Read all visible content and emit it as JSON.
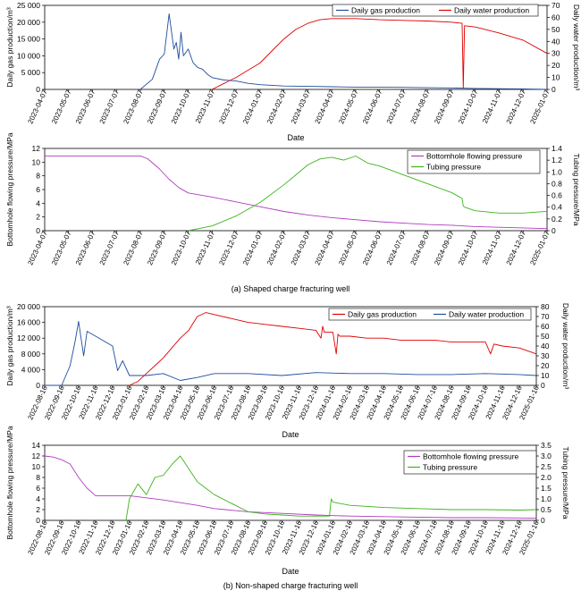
{
  "figure": {
    "caption_a": "(a) Shaped charge fracturing well",
    "caption_b": "(b) Non-shaped charge fracturing well",
    "colors": {
      "gas": "#e00000",
      "water": "#1f4e9c",
      "bhp": "#b03cc0",
      "tubing": "#3cb41c"
    }
  },
  "chart_data": [
    {
      "id": "a-production",
      "type": "line",
      "xlabel": "Date",
      "ylabel_left": "Daily gas production/m³",
      "ylabel_right": "Daily water production/m³",
      "left_ticks": [
        "0",
        "5 000",
        "10 000",
        "15 000",
        "20 000",
        "25 000"
      ],
      "left_ylim": [
        0,
        25000
      ],
      "right_ticks": [
        "0",
        "10",
        "20",
        "30",
        "40",
        "50",
        "60",
        "70"
      ],
      "right_ylim": [
        0,
        70
      ],
      "categories": [
        "2023-04-07",
        "2023-05-07",
        "2023-06-07",
        "2023-07-07",
        "2023-08-07",
        "2023-09-07",
        "2023-10-07",
        "2023-11-07",
        "2023-12-07",
        "2024-01-07",
        "2024-02-07",
        "2024-03-07",
        "2024-04-07",
        "2024-05-07",
        "2024-06-07",
        "2024-07-07",
        "2024-08-07",
        "2024-09-07",
        "2024-10-07",
        "2024-11-07",
        "2024-12-07",
        "2025-01-07"
      ],
      "legend": "top-right",
      "series": [
        {
          "name": "Daily gas production",
          "axis": "left",
          "color": "#1f4e9c",
          "x": [
            4.0,
            4.5,
            4.8,
            5.0,
            5.2,
            5.4,
            5.5,
            5.6,
            5.7,
            5.8,
            6.0,
            6.2,
            6.4,
            6.6,
            6.8,
            7.0,
            7.5,
            8.0,
            8.5,
            9.0,
            10.0,
            11.0,
            12.0,
            13.0,
            14.0,
            15.0,
            16.0,
            17.0,
            18.0,
            19.0,
            20.0,
            21.0
          ],
          "y": [
            0,
            3000,
            9000,
            10500,
            22500,
            12000,
            14000,
            9000,
            17000,
            10000,
            12000,
            8000,
            6500,
            6000,
            4500,
            3500,
            2800,
            2500,
            1800,
            1400,
            1000,
            900,
            800,
            700,
            650,
            600,
            500,
            450,
            300,
            200,
            150,
            0
          ]
        },
        {
          "name": "Daily water production",
          "axis": "right",
          "color": "#e00000",
          "x": [
            7.0,
            7.5,
            8.0,
            8.5,
            9.0,
            9.5,
            10.0,
            10.5,
            11.0,
            11.5,
            12.0,
            13.0,
            14.0,
            15.0,
            16.0,
            17.0,
            17.45,
            17.5,
            17.55,
            18.0,
            19.0,
            20.0,
            21.0
          ],
          "y": [
            0,
            5,
            10,
            16,
            22,
            32,
            42,
            50,
            55,
            58,
            59,
            59,
            58,
            57.5,
            57,
            56,
            55,
            1,
            53,
            52,
            47,
            41,
            30
          ]
        }
      ]
    },
    {
      "id": "a-pressure",
      "type": "line",
      "xlabel": "",
      "ylabel_left": "Bottomhole flowing pressure/MPa",
      "ylabel_right": "Tubing pressure/MPa",
      "left_ticks": [
        "0",
        "2",
        "4",
        "6",
        "8",
        "10",
        "12"
      ],
      "left_ylim": [
        0,
        12
      ],
      "right_ticks": [
        "0",
        "0.2",
        "0.4",
        "0.6",
        "0.8",
        "1.0",
        "1.2",
        "1.4"
      ],
      "right_ylim": [
        0,
        1.4
      ],
      "categories": [
        "2023-04-07",
        "2023-05-07",
        "2023-06-07",
        "2023-07-07",
        "2023-08-07",
        "2023-09-07",
        "2023-10-07",
        "2023-11-07",
        "2023-12-07",
        "2024-01-07",
        "2024-02-07",
        "2024-03-07",
        "2024-04-07",
        "2024-05-07",
        "2024-06-07",
        "2024-07-07",
        "2024-08-07",
        "2024-09-07",
        "2024-10-07",
        "2024-11-07",
        "2024-12-07",
        "2025-01-07"
      ],
      "legend": "top-right",
      "series": [
        {
          "name": "Bottomhole flowing pressure",
          "axis": "left",
          "color": "#b03cc0",
          "x": [
            0,
            1,
            2,
            3,
            4.0,
            4.3,
            4.8,
            5.2,
            5.6,
            6.0,
            7.0,
            8.0,
            9.0,
            10.0,
            11.0,
            12.0,
            13.0,
            14.0,
            15.0,
            16.0,
            17.0,
            18.0,
            19.0,
            20.0,
            21.0
          ],
          "y": [
            10.9,
            10.9,
            10.9,
            10.9,
            10.9,
            10.5,
            9.0,
            7.5,
            6.3,
            5.5,
            4.9,
            4.2,
            3.5,
            2.8,
            2.3,
            1.9,
            1.6,
            1.3,
            1.1,
            0.9,
            0.8,
            0.6,
            0.5,
            0.4,
            0.3
          ]
        },
        {
          "name": "Tubing pressure",
          "axis": "right",
          "color": "#3cb41c",
          "x": [
            6.0,
            7.0,
            8.0,
            9.0,
            10.0,
            10.5,
            11.0,
            11.5,
            12.0,
            12.5,
            13.0,
            13.5,
            14.0,
            15.0,
            16.0,
            17.0,
            17.45,
            17.5,
            17.55,
            18.0,
            19.0,
            20.0,
            21.0
          ],
          "y": [
            0,
            0.08,
            0.25,
            0.48,
            0.78,
            0.95,
            1.12,
            1.22,
            1.25,
            1.2,
            1.27,
            1.15,
            1.1,
            0.95,
            0.8,
            0.65,
            0.55,
            0.42,
            0.4,
            0.34,
            0.3,
            0.3,
            0.33
          ]
        }
      ]
    },
    {
      "id": "b-production",
      "type": "line",
      "xlabel": "Date",
      "ylabel_left": "Daily gas production/m³",
      "ylabel_right": "Daily water production/m³",
      "left_ticks": [
        "0",
        "4 000",
        "8 000",
        "12 000",
        "16 000",
        "20 000"
      ],
      "left_ylim": [
        0,
        20000
      ],
      "right_ticks": [
        "0",
        "10",
        "20",
        "30",
        "40",
        "50",
        "60",
        "70",
        "80"
      ],
      "right_ylim": [
        0,
        80
      ],
      "categories": [
        "2022-08-16",
        "2022-09-16",
        "2022-10-16",
        "2022-11-16",
        "2022-12-16",
        "2023-01-16",
        "2023-02-16",
        "2023-03-16",
        "2023-04-16",
        "2023-05-16",
        "2023-06-16",
        "2023-07-16",
        "2023-08-16",
        "2023-09-16",
        "2023-10-16",
        "2023-11-16",
        "2023-12-16",
        "2024-01-16",
        "2024-02-16",
        "2024-03-16",
        "2024-04-16",
        "2024-05-16",
        "2024-06-16",
        "2024-07-16",
        "2024-08-16",
        "2024-09-16",
        "2024-10-16",
        "2024-11-16",
        "2024-12-16",
        "2025-01-16"
      ],
      "legend": "top-right",
      "series": [
        {
          "name": "Daily gas production",
          "axis": "left",
          "color": "#e00000",
          "x": [
            5.0,
            5.5,
            6.0,
            6.5,
            7.0,
            7.5,
            8.0,
            8.5,
            9.0,
            9.5,
            10.0,
            11.0,
            12.0,
            13.0,
            14.0,
            15.0,
            16.0,
            16.3,
            16.4,
            16.5,
            17.0,
            17.2,
            17.3,
            17.4,
            18.0,
            19.0,
            20.0,
            21.0,
            22.0,
            23.0,
            24.0,
            25.0,
            26.0,
            26.3,
            26.5,
            27.0,
            28.0,
            29.0
          ],
          "y": [
            0,
            1000,
            3000,
            5000,
            7000,
            9500,
            12000,
            14000,
            17500,
            18500,
            18000,
            17000,
            16000,
            15500,
            15000,
            14500,
            14000,
            12000,
            15000,
            13500,
            13500,
            8000,
            13000,
            12500,
            12500,
            12000,
            12000,
            11500,
            11500,
            11500,
            11000,
            11000,
            11000,
            8000,
            10500,
            10000,
            9500,
            8000
          ]
        },
        {
          "name": "Daily water production",
          "axis": "right",
          "color": "#1f4e9c",
          "x": [
            0,
            1.0,
            1.5,
            1.8,
            2.0,
            2.3,
            2.5,
            3.0,
            3.5,
            4.0,
            4.3,
            4.6,
            5.0,
            6.0,
            7.0,
            8.0,
            9.0,
            10.0,
            12.0,
            14.0,
            16.0,
            18.0,
            20.0,
            22.0,
            24.0,
            26.0,
            28.0,
            29.0
          ],
          "y": [
            0,
            0,
            20,
            45,
            65,
            30,
            55,
            50,
            45,
            40,
            15,
            25,
            10,
            10,
            12,
            5,
            8,
            12,
            12,
            10,
            13,
            12,
            12,
            11,
            11,
            12,
            11,
            10
          ]
        }
      ]
    },
    {
      "id": "b-pressure",
      "type": "line",
      "xlabel": "Date",
      "ylabel_left": "Bottomhole flowing pressure/MPa",
      "ylabel_right": "Tubing pressure/MPa",
      "left_ticks": [
        "0",
        "2",
        "4",
        "6",
        "8",
        "10",
        "12",
        "14"
      ],
      "left_ylim": [
        0,
        14
      ],
      "right_ticks": [
        "0",
        "0.5",
        "1.0",
        "1.5",
        "2.0",
        "2.5",
        "3.0",
        "3.5"
      ],
      "right_ylim": [
        0,
        3.5
      ],
      "categories": [
        "2022-08-16",
        "2022-09-16",
        "2022-10-16",
        "2022-11-16",
        "2022-12-16",
        "2023-01-16",
        "2023-02-16",
        "2023-03-16",
        "2023-04-16",
        "2023-05-16",
        "2023-06-16",
        "2023-07-16",
        "2023-08-16",
        "2023-09-16",
        "2023-10-16",
        "2023-11-16",
        "2023-12-16",
        "2024-01-16",
        "2024-02-16",
        "2024-03-16",
        "2024-04-16",
        "2024-05-16",
        "2024-06-16",
        "2024-07-16",
        "2024-08-16",
        "2024-09-16",
        "2024-10-16",
        "2024-11-16",
        "2024-12-16",
        "2025-01-16"
      ],
      "legend": "top-right",
      "series": [
        {
          "name": "Bottomhole flowing pressure",
          "axis": "left",
          "color": "#b03cc0",
          "x": [
            0,
            0.5,
            1.0,
            1.5,
            2.0,
            2.5,
            3.0,
            4.0,
            5.0,
            6.0,
            7.0,
            8.0,
            9.0,
            10.0,
            12.0,
            14.0,
            16.0,
            18.0,
            20.0,
            22.0,
            24.0,
            26.0,
            28.0,
            29.0
          ],
          "y": [
            12,
            11.8,
            11.3,
            10.5,
            8,
            6,
            4.6,
            4.6,
            4.6,
            4.2,
            3.8,
            3.3,
            2.8,
            2.2,
            1.6,
            1.3,
            1.0,
            0.8,
            0.7,
            0.6,
            0.5,
            0.5,
            0.45,
            0.4
          ]
        },
        {
          "name": "Tubing pressure",
          "axis": "right",
          "color": "#3cb41c",
          "x": [
            4.8,
            5.0,
            5.5,
            6.0,
            6.5,
            7.0,
            7.5,
            8.0,
            8.5,
            9.0,
            9.5,
            10.0,
            11.0,
            12.0,
            13.0,
            14.0,
            15.0,
            16.0,
            16.8,
            16.9,
            17.0,
            18.0,
            20.0,
            22.0,
            24.0,
            26.0,
            28.0,
            29.0
          ],
          "y": [
            0,
            1.0,
            1.7,
            1.2,
            2.0,
            2.1,
            2.6,
            3.0,
            2.4,
            1.8,
            1.5,
            1.2,
            0.8,
            0.4,
            0.3,
            0.25,
            0.2,
            0.2,
            0.2,
            1.0,
            0.85,
            0.7,
            0.6,
            0.55,
            0.5,
            0.5,
            0.48,
            0.5
          ]
        }
      ]
    }
  ]
}
